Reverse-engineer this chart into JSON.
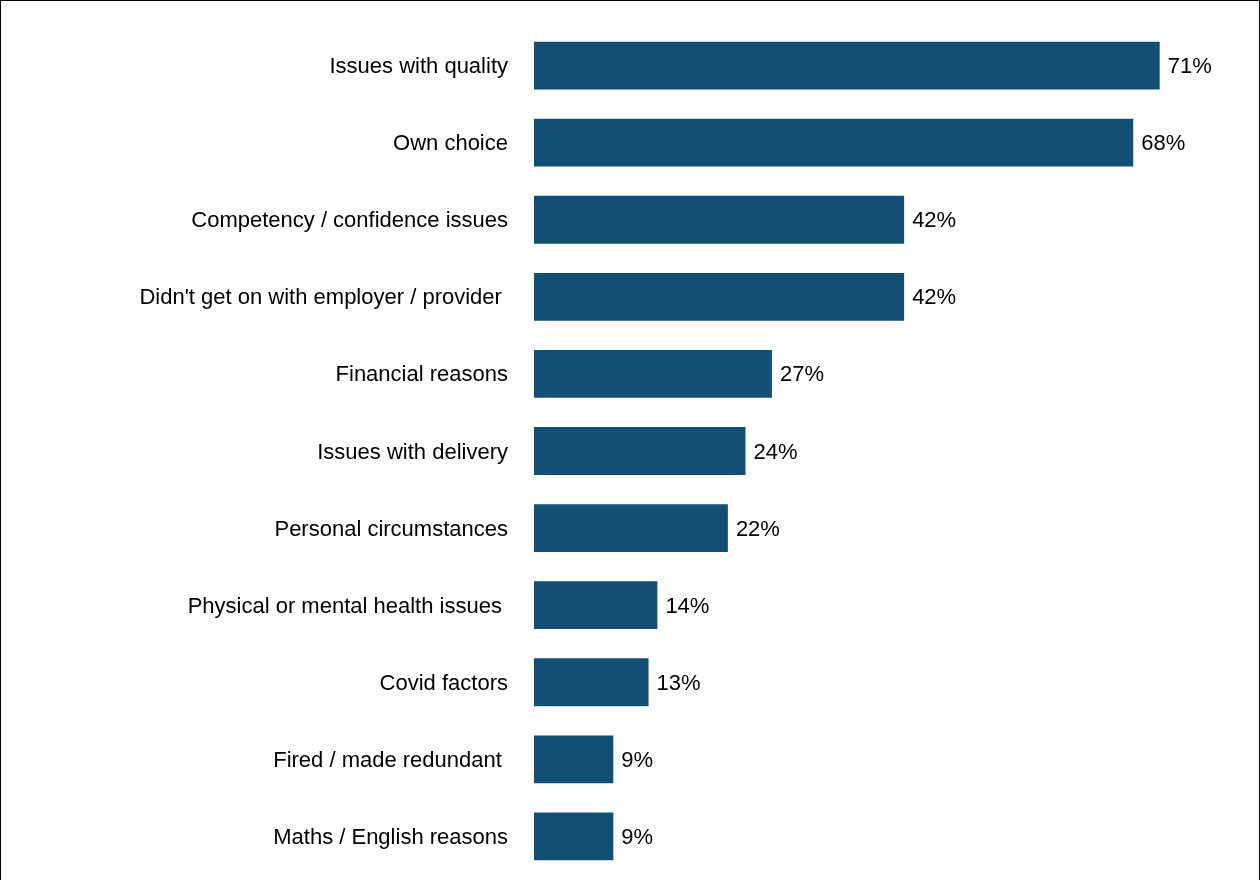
{
  "chart_data": {
    "type": "bar",
    "orientation": "horizontal",
    "tick_labels": "y",
    "categories": [
      "Issues with quality",
      "Own choice",
      "Competency / confidence issues",
      "Didn't get on with employer / provider ",
      "Financial reasons",
      "Issues with delivery",
      "Personal circumstances",
      "Physical or mental health issues ",
      "Covid factors",
      "Fired / made redundant ",
      "Maths / English reasons"
    ],
    "values": [
      71,
      68,
      42,
      42,
      27,
      24,
      22,
      14,
      13,
      9,
      9
    ],
    "value_labels": [
      "71%",
      "68%",
      "42%",
      "42%",
      "27%",
      "24%",
      "22%",
      "14%",
      "13%",
      "9%",
      "9%"
    ],
    "color": "#124f75"
  }
}
